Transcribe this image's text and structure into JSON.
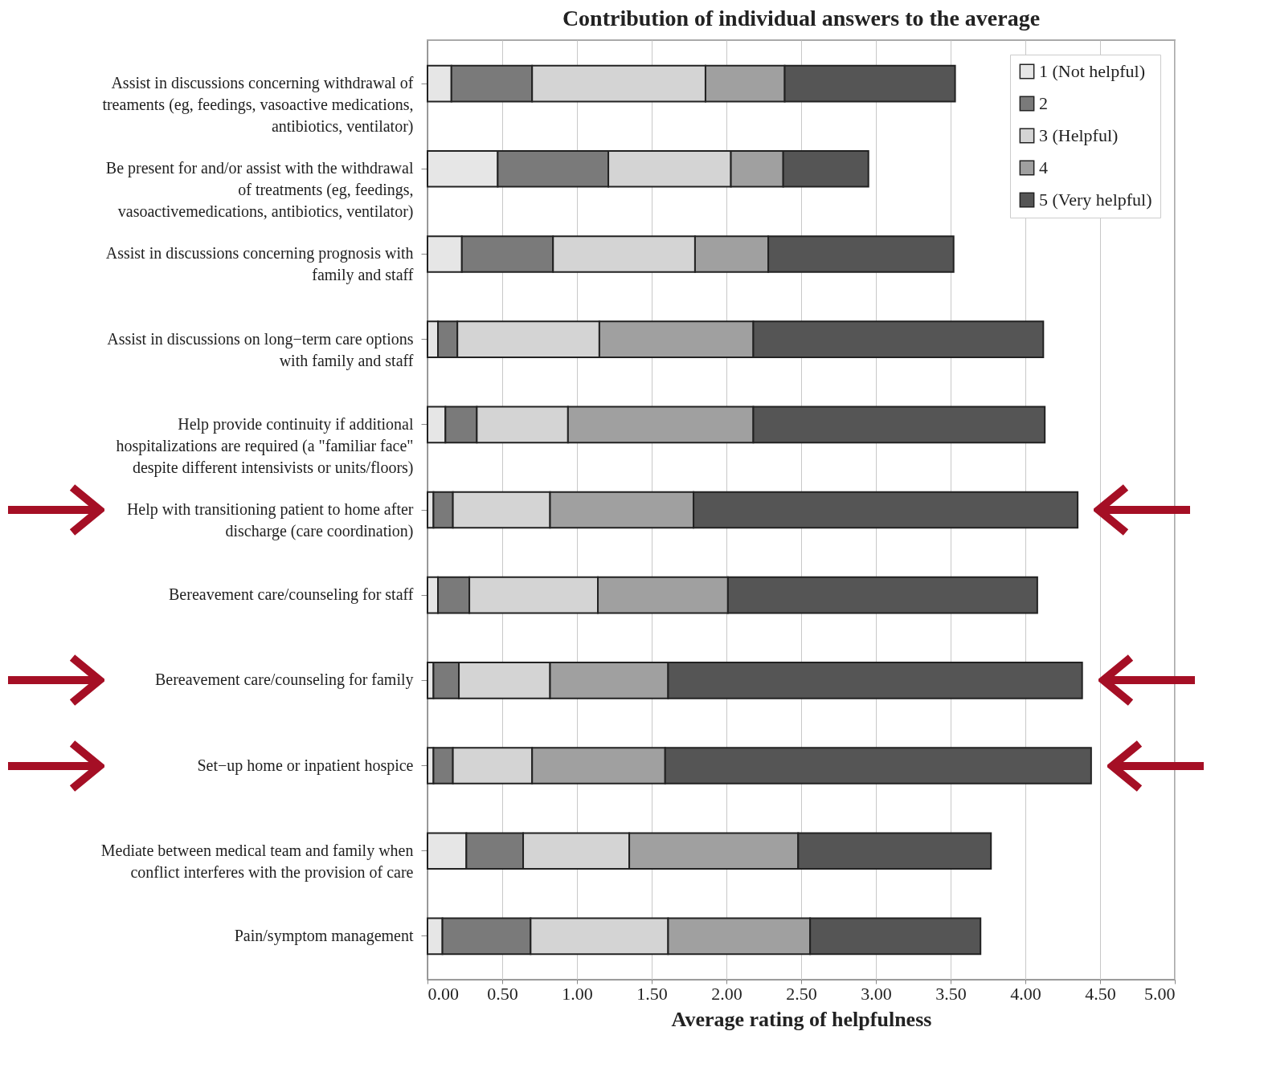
{
  "chart_data": {
    "type": "bar",
    "orientation": "horizontal",
    "stacked": true,
    "title": "Contribution of individual answers to the average",
    "xlabel": "Average rating of helpfulness",
    "categories": [
      "Assist in discussions concerning withdrawal of treaments (eg, feedings, vasoactive medications, antibiotics, ventilator)",
      "Be present for and/or assist with the withdrawal of treatments (eg, feedings, vasoactivemedications, antibiotics, ventilator)",
      "Assist in discussions concerning prognosis with family and staff",
      "Assist in discussions on long−term care options with family and staff",
      "Help provide continuity if additional hospitalizations are required (a \"familiar face\" despite different intensivists or units/floors)",
      "Help with transitioning patient to home after discharge (care coordination)",
      "Bereavement care/counseling for staff",
      "Bereavement care/counseling for family",
      "Set−up home or inpatient hospice",
      "Mediate between medical team and family when conflict interferes with the provision of care",
      "Pain/symptom management"
    ],
    "series": [
      {
        "name": "1 (Not helpful)",
        "color": "#e6e6e6",
        "values": [
          0.16,
          0.47,
          0.23,
          0.07,
          0.12,
          0.04,
          0.07,
          0.04,
          0.04,
          0.26,
          0.1
        ]
      },
      {
        "name": "2",
        "color": "#7a7a7a",
        "values": [
          0.54,
          0.74,
          0.61,
          0.13,
          0.21,
          0.13,
          0.21,
          0.17,
          0.13,
          0.38,
          0.59
        ]
      },
      {
        "name": "3 (Helpful)",
        "color": "#d4d4d4",
        "values": [
          1.16,
          0.82,
          0.95,
          0.95,
          0.61,
          0.65,
          0.86,
          0.61,
          0.53,
          0.71,
          0.92
        ]
      },
      {
        "name": "4",
        "color": "#a0a0a0",
        "values": [
          0.53,
          0.35,
          0.49,
          1.03,
          1.24,
          0.96,
          0.87,
          0.79,
          0.89,
          1.13,
          0.95
        ]
      },
      {
        "name": "5 (Very helpful)",
        "color": "#555555",
        "values": [
          1.14,
          0.57,
          1.24,
          1.94,
          1.95,
          2.57,
          2.07,
          2.77,
          2.85,
          1.29,
          1.14
        ]
      }
    ],
    "xlim": [
      0,
      5
    ],
    "xticks": [
      {
        "value": 0,
        "label": "0.00"
      },
      {
        "value": 0.5,
        "label": "0.50"
      },
      {
        "value": 1,
        "label": "1.00"
      },
      {
        "value": 1.5,
        "label": "1.50"
      },
      {
        "value": 2,
        "label": "2.00"
      },
      {
        "value": 2.5,
        "label": "2.50"
      },
      {
        "value": 3,
        "label": "3.00"
      },
      {
        "value": 3.5,
        "label": "3.50"
      },
      {
        "value": 4,
        "label": "4.00"
      },
      {
        "value": 4.5,
        "label": "4.50"
      },
      {
        "value": 5,
        "label": "5.00"
      }
    ],
    "grid": "x",
    "legend": "top right"
  }
}
